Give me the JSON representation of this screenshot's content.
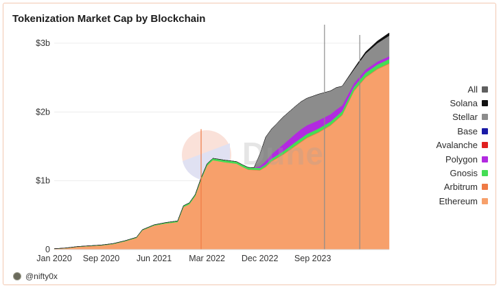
{
  "card": {
    "title": "Tokenization Market Cap by Blockchain",
    "author": "@nifty0x"
  },
  "watermark": {
    "logo_text": "Dune"
  },
  "colors": {
    "All": "#5f5f5f",
    "Solana": "#111111",
    "Stellar": "#8c8c8c",
    "Base": "#1a1aa6",
    "Avalanche": "#e02020",
    "Polygon": "#b22ae0",
    "Gnosis": "#44dd55",
    "Arbitrum": "#ef7a45",
    "Ethereum": "#f7a06b"
  },
  "legend": [
    {
      "label": "All",
      "color": "#5f5f5f"
    },
    {
      "label": "Solana",
      "color": "#111111"
    },
    {
      "label": "Stellar",
      "color": "#8c8c8c"
    },
    {
      "label": "Base",
      "color": "#1a1aa6"
    },
    {
      "label": "Avalanche",
      "color": "#e02020"
    },
    {
      "label": "Polygon",
      "color": "#b22ae0"
    },
    {
      "label": "Gnosis",
      "color": "#44dd55"
    },
    {
      "label": "Arbitrum",
      "color": "#ef7a45"
    },
    {
      "label": "Ethereum",
      "color": "#f7a06b"
    }
  ],
  "chart_data": {
    "type": "area",
    "title": "Tokenization Market Cap by Blockchain",
    "stacked": true,
    "x_unit": "month",
    "xlim": [
      "2020-01",
      "2024-10"
    ],
    "ylim": [
      0,
      3.1
    ],
    "y_unit": "billions USD",
    "grid": true,
    "legend_position": "right",
    "x_ticks": [
      {
        "label": "Jan 2020",
        "x": "2020-01"
      },
      {
        "label": "Sep 2020",
        "x": "2020-09"
      },
      {
        "label": "Jun 2021",
        "x": "2021-06"
      },
      {
        "label": "Mar 2022",
        "x": "2022-03"
      },
      {
        "label": "Dec 2022",
        "x": "2022-12"
      },
      {
        "label": "Sep 2023",
        "x": "2023-09"
      }
    ],
    "y_ticks": [
      {
        "label": "0",
        "value": 0
      },
      {
        "label": "$1b",
        "value": 1
      },
      {
        "label": "$2b",
        "value": 2
      },
      {
        "label": "$3b",
        "value": 3
      }
    ],
    "series": [
      {
        "name": "Ethereum",
        "color": "#f7a06b",
        "points": [
          [
            "2020-01",
            0.01
          ],
          [
            "2020-03",
            0.02
          ],
          [
            "2020-05",
            0.04
          ],
          [
            "2020-07",
            0.05
          ],
          [
            "2020-09",
            0.06
          ],
          [
            "2020-11",
            0.08
          ],
          [
            "2021-01",
            0.12
          ],
          [
            "2021-03",
            0.17
          ],
          [
            "2021-04",
            0.28
          ],
          [
            "2021-06",
            0.35
          ],
          [
            "2021-08",
            0.38
          ],
          [
            "2021-10",
            0.4
          ],
          [
            "2021-11",
            0.62
          ],
          [
            "2021-12",
            0.66
          ],
          [
            "2022-01",
            0.78
          ],
          [
            "2022-02",
            1.02
          ],
          [
            "2022-03",
            1.22
          ],
          [
            "2022-04",
            1.3
          ],
          [
            "2022-06",
            1.27
          ],
          [
            "2022-08",
            1.25
          ],
          [
            "2022-10",
            1.16
          ],
          [
            "2022-12",
            1.15
          ],
          [
            "2023-01",
            1.2
          ],
          [
            "2023-02",
            1.28
          ],
          [
            "2023-04",
            1.38
          ],
          [
            "2023-06",
            1.5
          ],
          [
            "2023-08",
            1.62
          ],
          [
            "2023-10",
            1.7
          ],
          [
            "2023-12",
            1.8
          ],
          [
            "2024-02",
            1.95
          ],
          [
            "2024-04",
            2.3
          ],
          [
            "2024-06",
            2.5
          ],
          [
            "2024-08",
            2.62
          ],
          [
            "2024-10",
            2.7
          ]
        ]
      },
      {
        "name": "Arbitrum",
        "color": "#ef7a45",
        "points": [
          [
            "2020-01",
            0
          ],
          [
            "2022-09",
            0
          ],
          [
            "2022-10",
            0.005
          ],
          [
            "2023-06",
            0.01
          ],
          [
            "2024-10",
            0.01
          ]
        ]
      },
      {
        "name": "Gnosis",
        "color": "#44dd55",
        "points": [
          [
            "2020-01",
            0.003
          ],
          [
            "2021-06",
            0.01
          ],
          [
            "2021-12",
            0.02
          ],
          [
            "2022-06",
            0.03
          ],
          [
            "2023-01",
            0.03
          ],
          [
            "2023-06",
            0.05
          ],
          [
            "2024-01",
            0.05
          ],
          [
            "2024-06",
            0.06
          ],
          [
            "2024-10",
            0.06
          ]
        ]
      },
      {
        "name": "Polygon",
        "color": "#b22ae0",
        "points": [
          [
            "2020-01",
            0
          ],
          [
            "2022-11",
            0
          ],
          [
            "2023-01",
            0.05
          ],
          [
            "2023-04",
            0.1
          ],
          [
            "2023-07",
            0.13
          ],
          [
            "2023-10",
            0.12
          ],
          [
            "2024-01",
            0.1
          ],
          [
            "2024-04",
            0.05
          ],
          [
            "2024-10",
            0.04
          ]
        ]
      },
      {
        "name": "Stellar",
        "color": "#8c8c8c",
        "points": [
          [
            "2020-01",
            0
          ],
          [
            "2022-11",
            0
          ],
          [
            "2023-01",
            0.35
          ],
          [
            "2023-04",
            0.4
          ],
          [
            "2023-07",
            0.4
          ],
          [
            "2023-10",
            0.38
          ],
          [
            "2024-01",
            0.32
          ],
          [
            "2024-04",
            0.2
          ],
          [
            "2024-07",
            0.25
          ],
          [
            "2024-10",
            0.3
          ]
        ]
      },
      {
        "name": "Solana",
        "color": "#111111",
        "points": [
          [
            "2020-01",
            0
          ],
          [
            "2024-02",
            0
          ],
          [
            "2024-05",
            0.02
          ],
          [
            "2024-10",
            0.04
          ]
        ]
      }
    ],
    "spikes": [
      {
        "x": "2022-02",
        "value": 1.75,
        "color": "#ef7a45"
      },
      {
        "x": "2023-11",
        "value": 3.27,
        "color": "#8c8c8c"
      },
      {
        "x": "2024-05",
        "value": 3.12,
        "color": "#8c8c8c"
      }
    ]
  }
}
